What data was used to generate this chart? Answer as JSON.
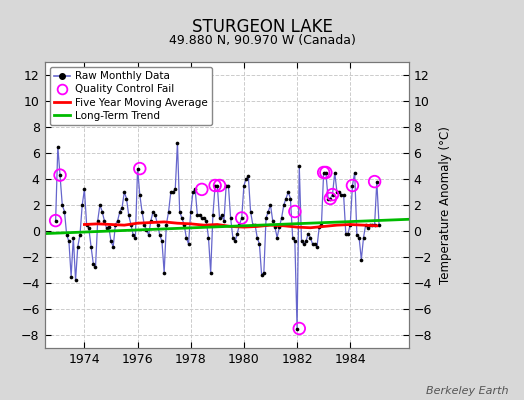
{
  "title": "STURGEON LAKE",
  "subtitle": "49.880 N, 90.970 W (Canada)",
  "ylabel": "Temperature Anomaly (°C)",
  "watermark": "Berkeley Earth",
  "ylim": [
    -9,
    13
  ],
  "yticks": [
    -8,
    -6,
    -4,
    -2,
    0,
    2,
    4,
    6,
    8,
    10,
    12
  ],
  "xlim": [
    1972.5,
    1986.2
  ],
  "xticks": [
    1974,
    1976,
    1978,
    1980,
    1982,
    1984
  ],
  "fig_bg_color": "#d8d8d8",
  "plot_bg_color": "#ffffff",
  "grid_color": "#cccccc",
  "raw_color": "#6666cc",
  "raw_marker_color": "black",
  "ma_color": "red",
  "trend_color": "#00bb00",
  "qc_color": "magenta",
  "raw_data_x": [
    1972.917,
    1973.0,
    1973.083,
    1973.167,
    1973.25,
    1973.333,
    1973.417,
    1973.5,
    1973.583,
    1973.667,
    1973.75,
    1973.833,
    1973.917,
    1974.0,
    1974.083,
    1974.167,
    1974.25,
    1974.333,
    1974.417,
    1974.5,
    1974.583,
    1974.667,
    1974.75,
    1974.833,
    1974.917,
    1975.0,
    1975.083,
    1975.167,
    1975.25,
    1975.333,
    1975.417,
    1975.5,
    1975.583,
    1975.667,
    1975.75,
    1975.833,
    1975.917,
    1976.0,
    1976.083,
    1976.167,
    1976.25,
    1976.333,
    1976.417,
    1976.5,
    1976.583,
    1976.667,
    1976.75,
    1976.833,
    1976.917,
    1977.0,
    1977.083,
    1977.167,
    1977.25,
    1977.333,
    1977.417,
    1977.5,
    1977.583,
    1977.667,
    1977.75,
    1977.833,
    1977.917,
    1978.0,
    1978.083,
    1978.167,
    1978.25,
    1978.333,
    1978.417,
    1978.5,
    1978.583,
    1978.667,
    1978.75,
    1978.833,
    1978.917,
    1979.0,
    1979.083,
    1979.167,
    1979.25,
    1979.333,
    1979.417,
    1979.5,
    1979.583,
    1979.667,
    1979.75,
    1979.833,
    1979.917,
    1980.0,
    1980.083,
    1980.167,
    1980.25,
    1980.333,
    1980.417,
    1980.5,
    1980.583,
    1980.667,
    1980.75,
    1980.833,
    1980.917,
    1981.0,
    1981.083,
    1981.167,
    1981.25,
    1981.333,
    1981.417,
    1981.5,
    1981.583,
    1981.667,
    1981.75,
    1981.833,
    1981.917,
    1982.0,
    1982.083,
    1982.167,
    1982.25,
    1982.333,
    1982.417,
    1982.5,
    1982.583,
    1982.667,
    1982.75,
    1982.833,
    1982.917,
    1983.0,
    1983.083,
    1983.167,
    1983.25,
    1983.333,
    1983.417,
    1983.5,
    1983.583,
    1983.667,
    1983.75,
    1983.833,
    1983.917,
    1984.0,
    1984.083,
    1984.167,
    1984.25,
    1984.333,
    1984.417,
    1984.5,
    1984.583,
    1984.667,
    1984.75,
    1984.833,
    1984.917,
    1985.0,
    1985.083
  ],
  "raw_data_y": [
    0.8,
    6.5,
    4.3,
    2.0,
    1.5,
    -0.3,
    -0.8,
    -3.5,
    -0.5,
    -3.8,
    -1.2,
    -0.3,
    2.0,
    3.2,
    0.5,
    0.2,
    -1.2,
    -2.5,
    -2.8,
    0.8,
    2.0,
    1.5,
    0.8,
    0.2,
    0.3,
    -0.8,
    -1.2,
    0.5,
    0.8,
    1.5,
    1.8,
    3.0,
    2.5,
    1.2,
    0.5,
    -0.3,
    -0.5,
    4.8,
    2.8,
    1.5,
    0.5,
    0.1,
    -0.3,
    0.8,
    1.5,
    1.2,
    0.5,
    -0.3,
    -0.8,
    -3.2,
    0.5,
    1.5,
    3.0,
    3.0,
    3.2,
    6.8,
    1.5,
    1.0,
    0.5,
    -0.5,
    -1.0,
    1.5,
    3.0,
    3.2,
    1.2,
    1.2,
    1.0,
    1.0,
    0.8,
    -0.5,
    -3.2,
    1.2,
    3.5,
    3.5,
    1.0,
    1.2,
    0.8,
    3.5,
    3.5,
    1.0,
    -0.5,
    -0.8,
    -0.2,
    0.5,
    1.0,
    3.5,
    4.0,
    4.2,
    1.5,
    0.5,
    0.5,
    -0.5,
    -1.0,
    -3.4,
    -3.2,
    1.0,
    1.5,
    2.0,
    0.8,
    0.3,
    -0.5,
    0.3,
    1.0,
    2.0,
    2.5,
    3.0,
    2.5,
    -0.5,
    -0.8,
    -7.5,
    5.0,
    -0.8,
    -1.0,
    -0.8,
    -0.2,
    -0.5,
    -1.0,
    -1.0,
    -1.2,
    0.3,
    0.5,
    4.5,
    4.5,
    2.5,
    2.5,
    2.8,
    4.5,
    3.0,
    3.0,
    2.8,
    2.8,
    -0.2,
    -0.2,
    0.5,
    3.5,
    4.5,
    -0.3,
    -0.5,
    -2.2,
    -0.5,
    0.5,
    0.2,
    0.5,
    0.5,
    0.5,
    3.8,
    0.5
  ],
  "qc_fail_x": [
    1972.917,
    1973.083,
    1976.083,
    1978.417,
    1978.917,
    1979.083,
    1979.917,
    1981.917,
    1982.083,
    1983.0,
    1983.083,
    1983.25,
    1983.333,
    1984.083,
    1984.917
  ],
  "qc_fail_y": [
    0.8,
    4.3,
    4.8,
    3.2,
    3.5,
    3.5,
    1.0,
    1.5,
    -7.5,
    4.5,
    4.5,
    2.5,
    2.8,
    3.5,
    3.8
  ],
  "ma_x": [
    1974.0,
    1974.5,
    1975.0,
    1975.5,
    1976.0,
    1976.5,
    1977.0,
    1977.5,
    1978.0,
    1978.5,
    1979.0,
    1979.5,
    1980.0,
    1980.5,
    1981.0,
    1981.5,
    1982.0,
    1982.5,
    1983.0,
    1983.5,
    1984.0,
    1984.5,
    1985.0
  ],
  "ma_y": [
    0.5,
    0.55,
    0.5,
    0.45,
    0.6,
    0.65,
    0.7,
    0.6,
    0.55,
    0.45,
    0.5,
    0.35,
    0.3,
    0.35,
    0.45,
    0.4,
    0.3,
    0.25,
    0.35,
    0.45,
    0.5,
    0.45,
    0.4
  ],
  "trend_x": [
    1972.5,
    1986.2
  ],
  "trend_y": [
    -0.2,
    0.9
  ]
}
